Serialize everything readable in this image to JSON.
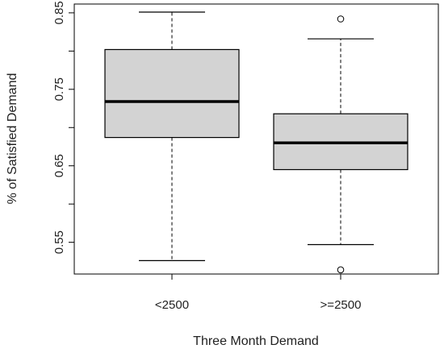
{
  "chart_data": {
    "type": "boxplot",
    "xlabel": "Three Month Demand",
    "ylabel": "% of Satisfied Demand",
    "ylim": [
      0.5085,
      0.8615
    ],
    "y_ticks": [
      0.55,
      0.6,
      0.65,
      0.7,
      0.75,
      0.8,
      0.85
    ],
    "y_tick_labels": [
      "0.55",
      "",
      "0.65",
      "",
      "0.75",
      "",
      "0.85"
    ],
    "categories": [
      "<2500",
      ">=2500"
    ],
    "boxes": [
      {
        "category": "<2500",
        "whisker_low": 0.526,
        "q1": 0.687,
        "median": 0.734,
        "q3": 0.802,
        "whisker_high": 0.851,
        "outliers": []
      },
      {
        "category": ">=2500",
        "whisker_low": 0.547,
        "q1": 0.645,
        "median": 0.68,
        "q3": 0.718,
        "whisker_high": 0.816,
        "outliers": [
          0.842,
          0.514
        ]
      }
    ],
    "colors": {
      "box_fill": "#d3d3d3",
      "stroke": "#000000"
    },
    "grid": false,
    "legend": "none"
  }
}
